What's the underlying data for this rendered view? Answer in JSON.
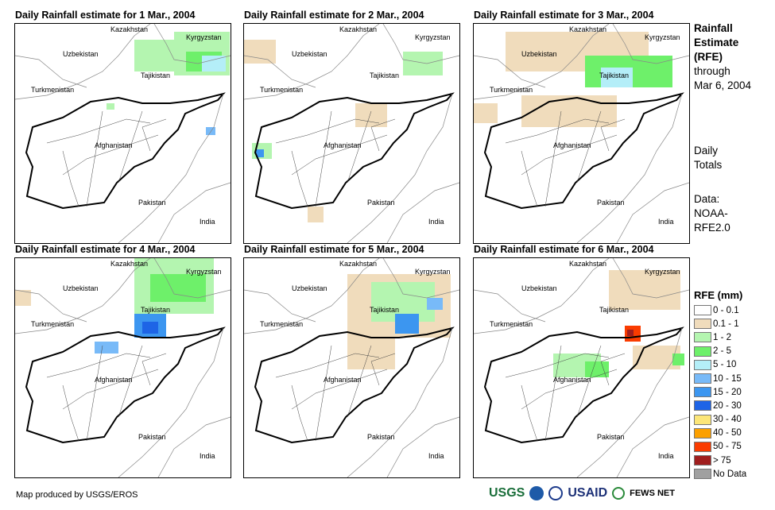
{
  "panels": [
    {
      "title": "Daily Rainfall estimate for 1 Mar., 2004"
    },
    {
      "title": "Daily Rainfall estimate for 2 Mar., 2004"
    },
    {
      "title": "Daily Rainfall estimate for 3 Mar., 2004"
    },
    {
      "title": "Daily Rainfall estimate for 4 Mar., 2004"
    },
    {
      "title": "Daily Rainfall estimate for 5 Mar., 2004"
    },
    {
      "title": "Daily Rainfall estimate for 6 Mar., 2004"
    }
  ],
  "countries": {
    "kazakhstan": "Kazakhstan",
    "kyrgyzstan": "Kyrgyzstan",
    "uzbekistan": "Uzbekistan",
    "tajikistan": "Tajikistan",
    "turkmenistan": "Turkmenistan",
    "afghanistan": "Afghanistan",
    "pakistan": "Pakistan",
    "india": "India"
  },
  "side": {
    "title1": "Rainfall",
    "title2": "Estimate",
    "title3": "(RFE)",
    "through": "through",
    "date": "Mar 6, 2004",
    "daily1": "Daily",
    "daily2": "Totals",
    "data1": "Data:",
    "data2": "NOAA-",
    "data3": "RFE2.0"
  },
  "legend": {
    "title": "RFE (mm)",
    "items": [
      {
        "label": "0 - 0.1",
        "color": "#ffffff"
      },
      {
        "label": "0.1 - 1",
        "color": "#f0dcbc"
      },
      {
        "label": "1 - 2",
        "color": "#b4f5b0"
      },
      {
        "label": "2 - 5",
        "color": "#6ef06a"
      },
      {
        "label": "5 - 10",
        "color": "#b4eef8"
      },
      {
        "label": "10 - 15",
        "color": "#78baf8"
      },
      {
        "label": "15 - 20",
        "color": "#3c96f0"
      },
      {
        "label": "20 - 30",
        "color": "#1e64e6"
      },
      {
        "label": "30 - 40",
        "color": "#fce678"
      },
      {
        "label": "40 - 50",
        "color": "#fca000"
      },
      {
        "label": "50 - 75",
        "color": "#fa3c00"
      },
      {
        "label": "> 75",
        "color": "#a01e1e"
      },
      {
        "label": "No Data",
        "color": "#a0a0a0"
      }
    ]
  },
  "credit": "Map produced by USGS/EROS",
  "logos": {
    "usgs": "USGS",
    "usaid": "USAID",
    "fews": "FEWS NET"
  }
}
